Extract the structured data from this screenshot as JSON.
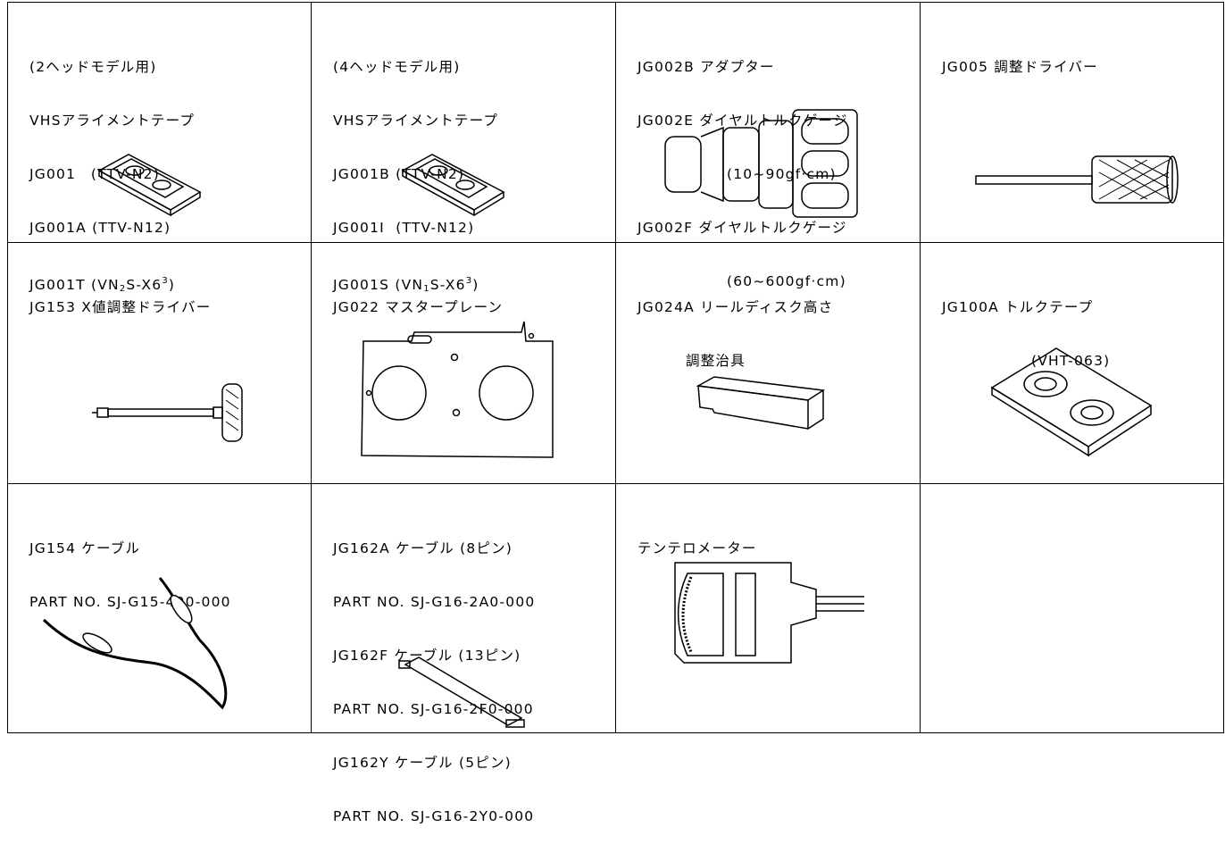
{
  "cells": [
    {
      "lines": [
        "(2ヘッドモデル用)",
        "VHSアライメントテープ",
        "JG001　(TTV-N2)",
        "JG001A (TTV-N12)",
        [
          "JG001T (VN",
          "2",
          "S-X6",
          "3",
          ")"
        ]
      ]
    },
    {
      "lines": [
        "(4ヘッドモデル用)",
        "VHSアライメントテープ",
        "JG001B (TTV-N2)",
        "JG001I  (TTV-N12)",
        [
          "JG001S (VN",
          "1",
          "S-X6",
          "3",
          ")"
        ]
      ]
    },
    {
      "lines": [
        "JG002B アダプター",
        "JG002E ダイヤルトルクゲージ",
        "(10~90gf·cm)",
        "JG002F ダイヤルトルクゲージ",
        "(60~600gf·cm)"
      ]
    },
    {
      "lines": [
        "JG005 調整ドライバー"
      ]
    },
    {
      "lines": [
        "JG153 X値調整ドライバー"
      ]
    },
    {
      "lines": [
        "JG022 マスタープレーン"
      ]
    },
    {
      "lines": [
        "JG024A リールディスク高さ",
        "調整治具"
      ]
    },
    {
      "lines": [
        "JG100A トルクテープ",
        "(VHT-063)"
      ]
    },
    {
      "lines": [
        "JG154 ケーブル",
        "PART NO. SJ-G15-400-000"
      ]
    },
    {
      "lines": [
        "JG162A ケーブル (8ピン)",
        "PART NO. SJ-G16-2A0-000",
        "JG162F ケーブル (13ピン)",
        "PART NO. SJ-G16-2F0-000",
        "JG162Y ケーブル (5ピン)",
        "PART NO. SJ-G16-2Y0-000"
      ]
    },
    {
      "lines": [
        "テンテロメーター"
      ]
    }
  ]
}
